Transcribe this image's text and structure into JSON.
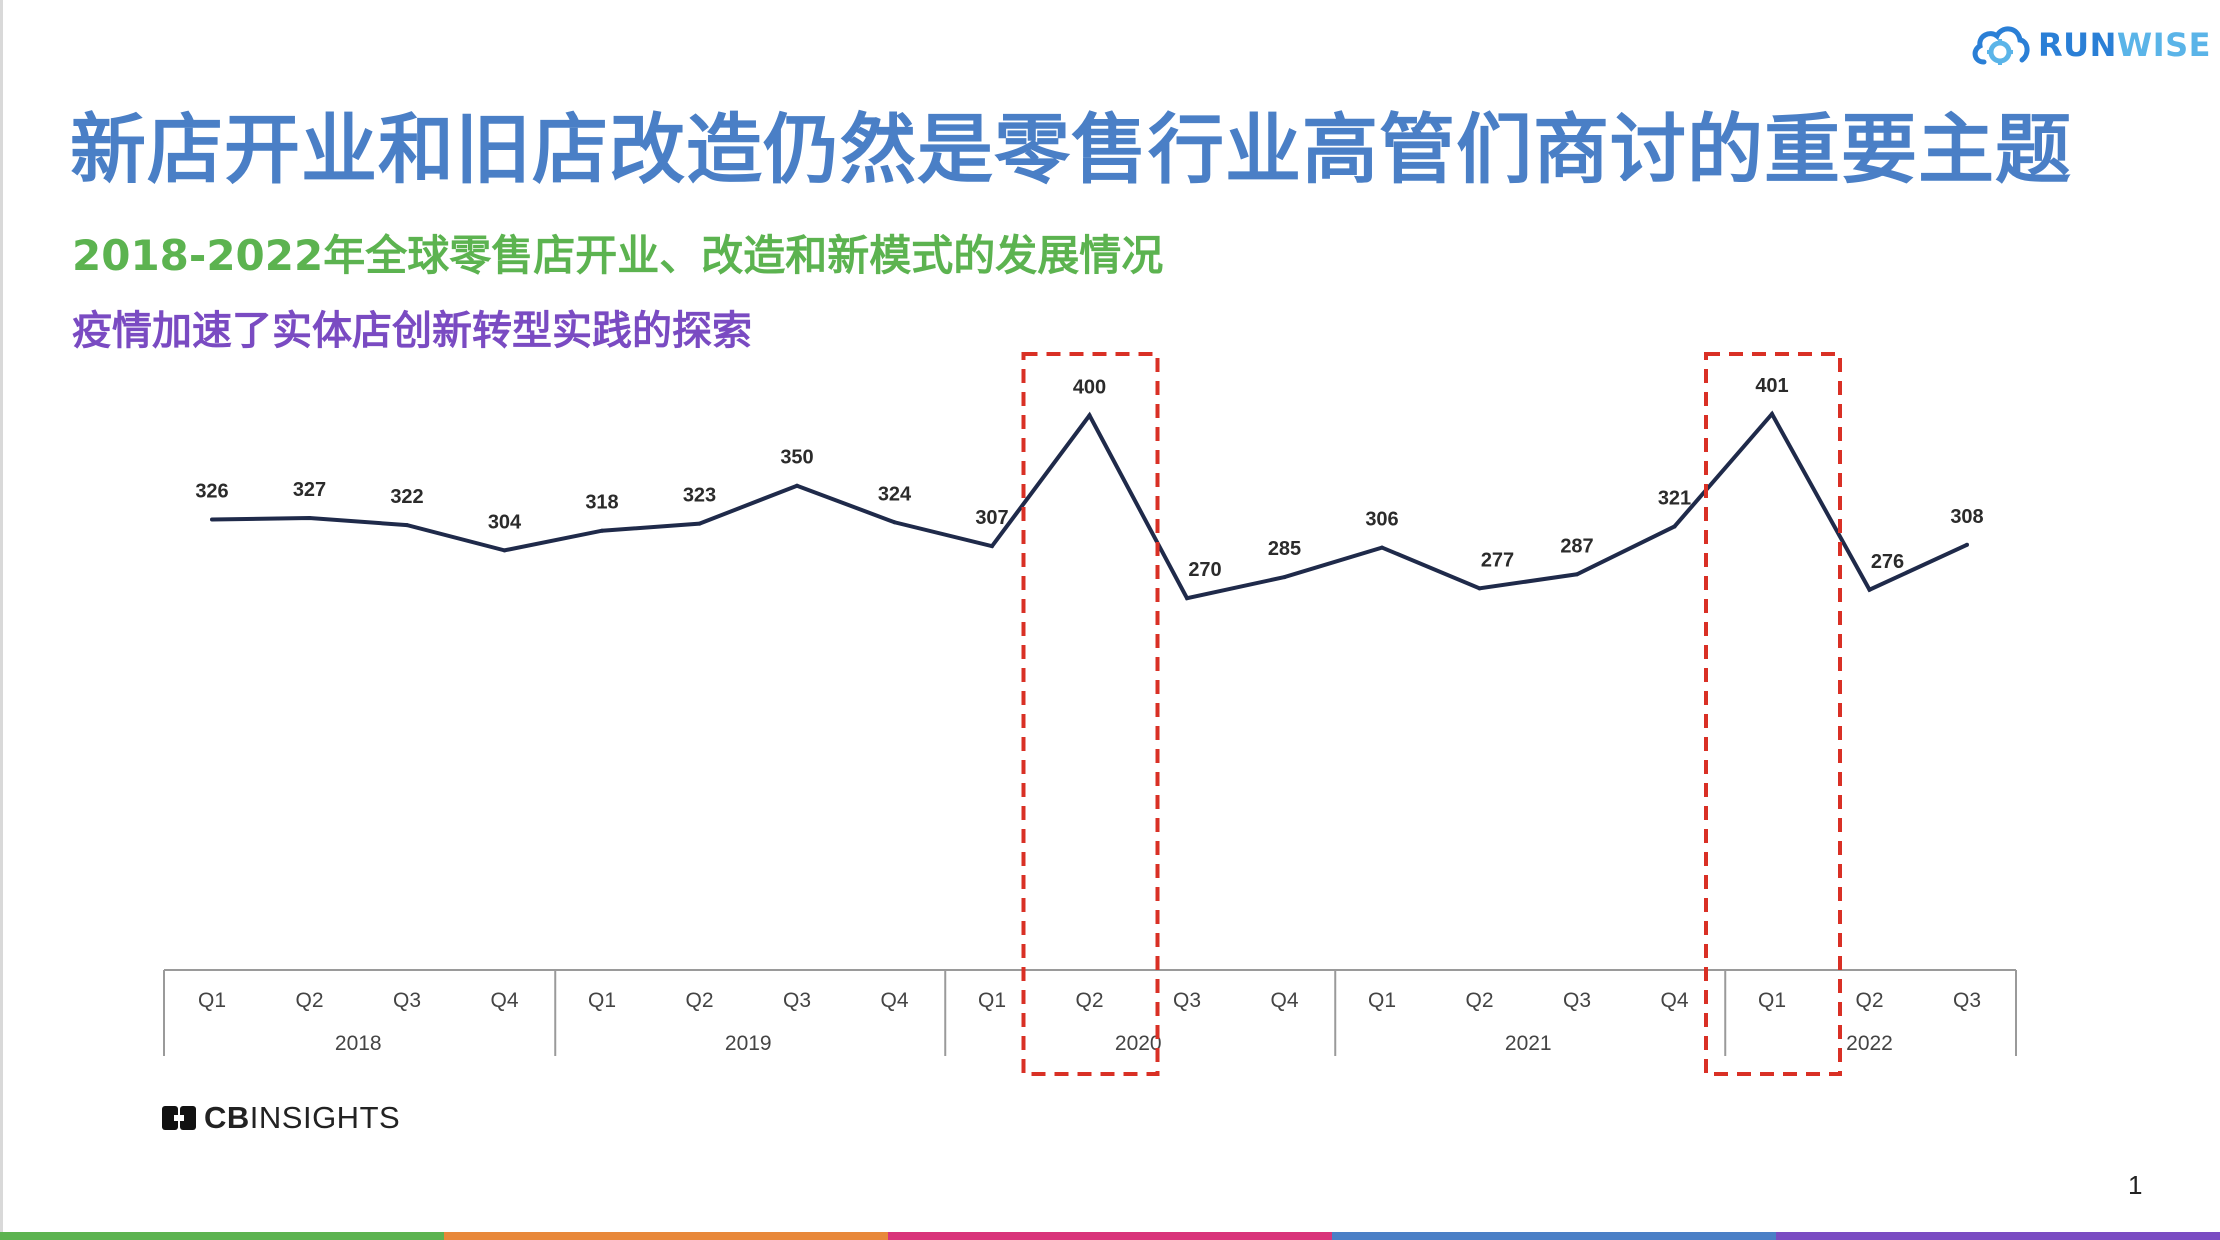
{
  "title": "新店开业和旧店改造仍然是零售行业高管们商讨的重要主题",
  "subtitle": "2018-2022年全球零售店开业、改造和新模式的发展情况",
  "subtitle2": "疫情加速了实体店创新转型实践的探索",
  "logo": {
    "brand_a": "RUN",
    "brand_b": "WISE",
    "icon": "cloud-gear-icon"
  },
  "source": {
    "brand_a": "CB",
    "brand_b": "INSIGHTS",
    "icon": "cb-logo-icon"
  },
  "page_number": "1",
  "colors": {
    "title": "#4a7fc6",
    "subtitle": "#5cb350",
    "subtitle2": "#7a4bc2",
    "line": "#1f2a4a",
    "highlight": "#d93025",
    "bottom_bar": [
      "#5cb350",
      "#e8883a",
      "#d9347a",
      "#4a7fc6",
      "#7a4bc2"
    ]
  },
  "chart_data": {
    "type": "line",
    "title": "",
    "xlabel": "",
    "ylabel": "",
    "ylim": [
      0,
      420
    ],
    "grid": false,
    "x": [
      "Q1",
      "Q2",
      "Q3",
      "Q4",
      "Q1",
      "Q2",
      "Q3",
      "Q4",
      "Q1",
      "Q2",
      "Q3",
      "Q4",
      "Q1",
      "Q2",
      "Q3",
      "Q4",
      "Q1",
      "Q2",
      "Q3"
    ],
    "groups": [
      {
        "label": "2018",
        "count": 4
      },
      {
        "label": "2019",
        "count": 4
      },
      {
        "label": "2020",
        "count": 4
      },
      {
        "label": "2021",
        "count": 4
      },
      {
        "label": "2022",
        "count": 3
      }
    ],
    "series": [
      {
        "values": [
          326,
          327,
          322,
          304,
          318,
          323,
          350,
          324,
          307,
          400,
          270,
          285,
          306,
          277,
          287,
          321,
          401,
          276,
          308
        ]
      }
    ],
    "highlights": [
      {
        "group": "2020",
        "quarter": "Q2",
        "index": 9
      },
      {
        "group": "2022",
        "quarter": "Q1",
        "index": 16
      }
    ]
  }
}
